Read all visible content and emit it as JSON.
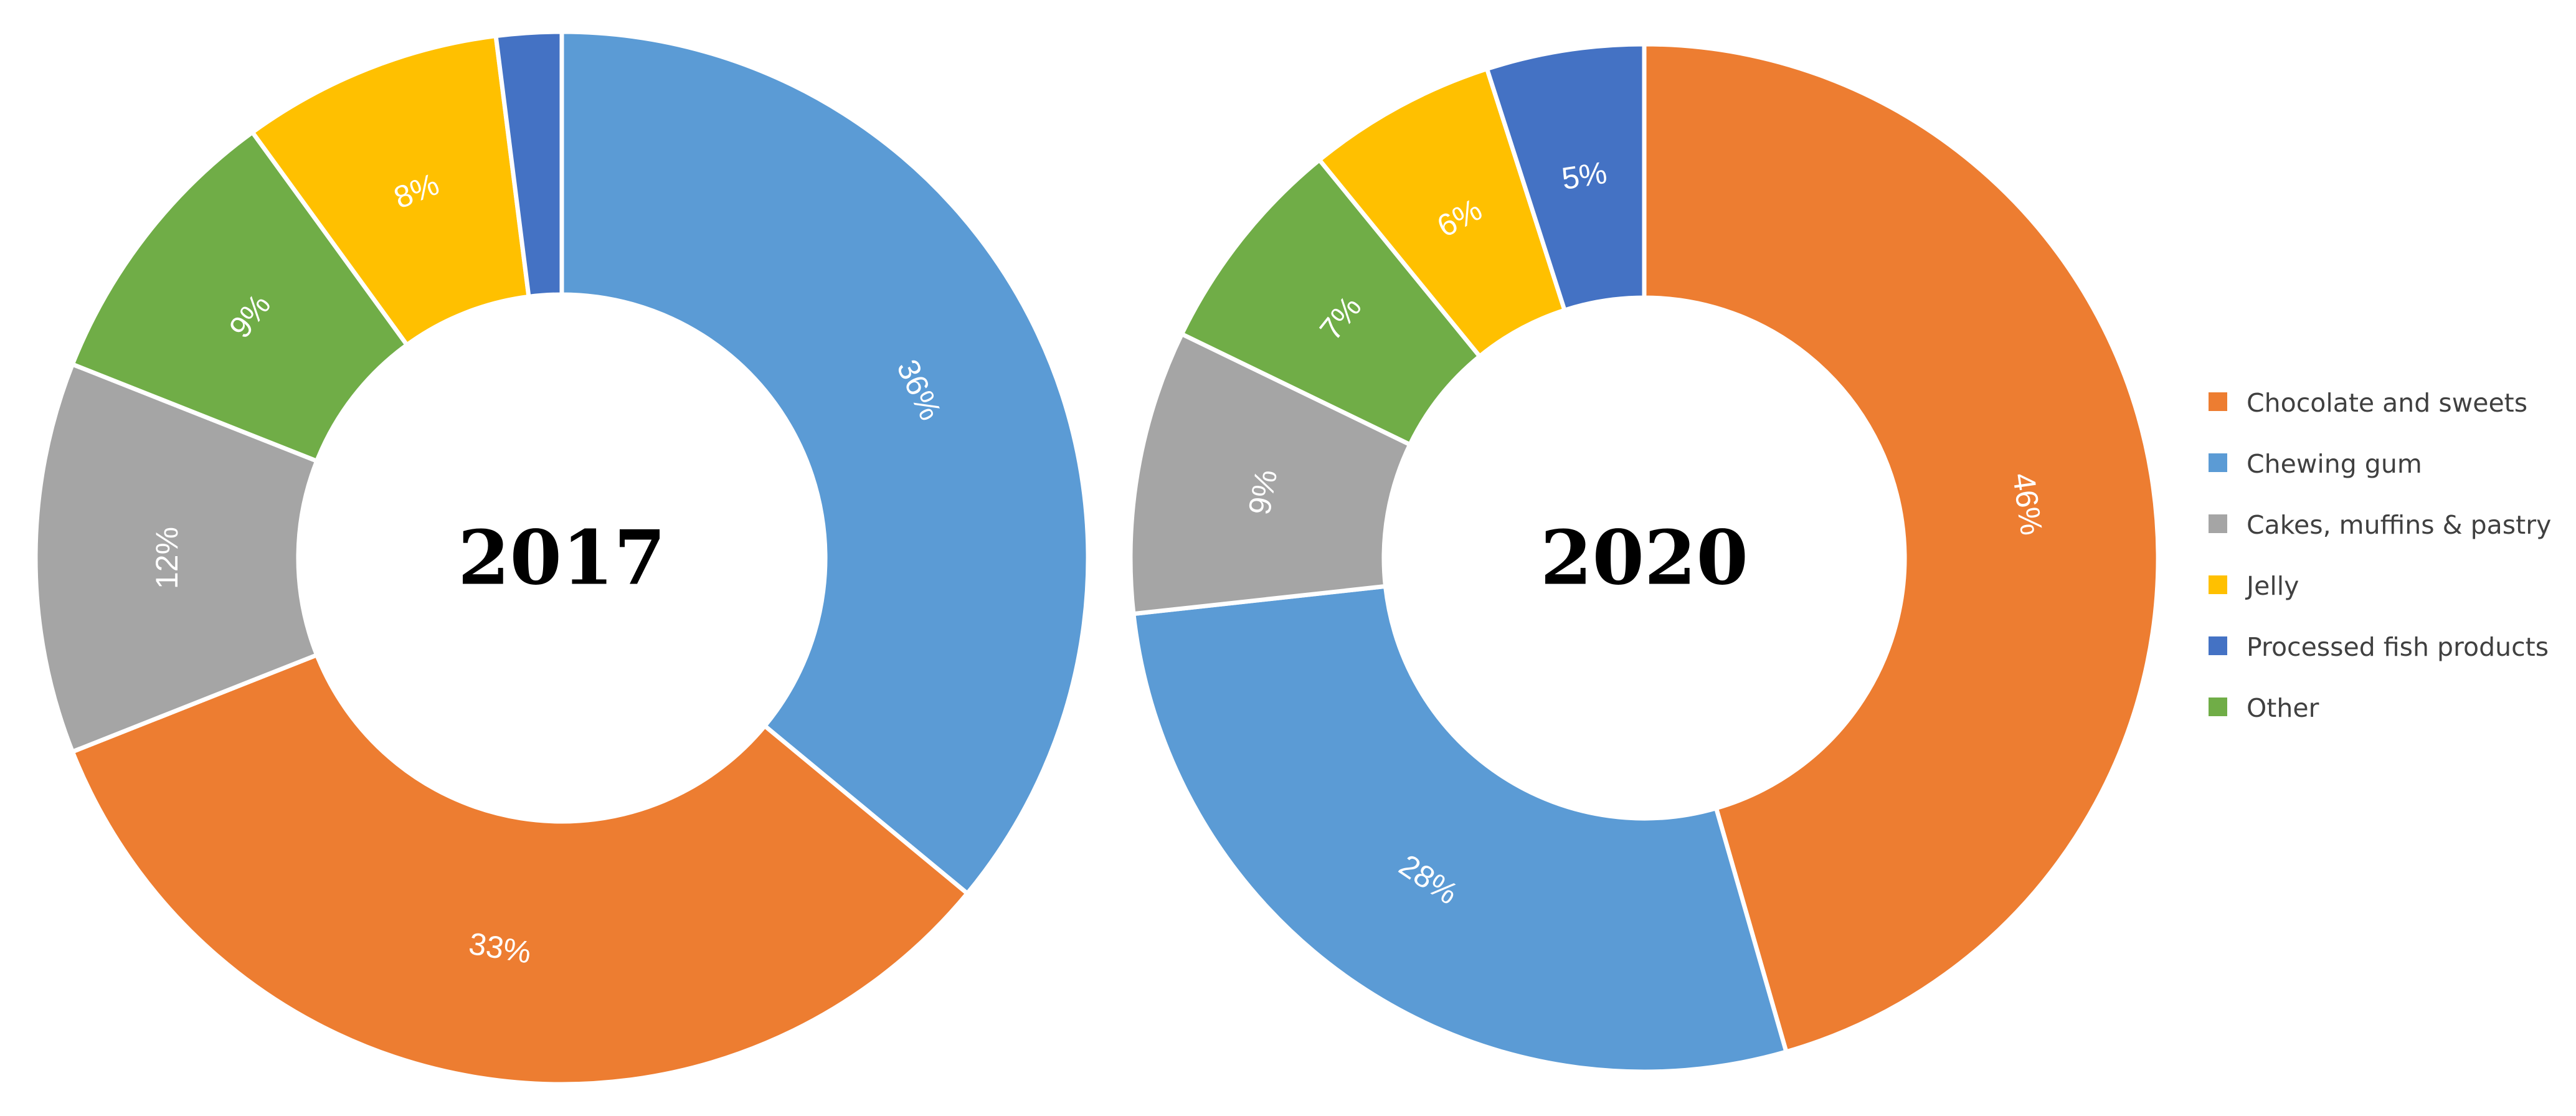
{
  "legend": {
    "position": "right",
    "items": [
      {
        "label": "Chocolate and sweets",
        "color": "#ED7D31"
      },
      {
        "label": "Chewing gum",
        "color": "#5B9BD5"
      },
      {
        "label": "Cakes, muffins & pastry",
        "color": "#A5A5A5"
      },
      {
        "label": "Jelly",
        "color": "#FFC000"
      },
      {
        "label": "Processed fish products",
        "color": "#4472C4"
      },
      {
        "label": "Other",
        "color": "#70AD47"
      }
    ]
  },
  "chart_data": [
    {
      "type": "donut",
      "title": "2017",
      "slices": [
        {
          "category": "Chewing gum",
          "value": 36,
          "label": "36%"
        },
        {
          "category": "Chocolate and sweets",
          "value": 33,
          "label": "33%"
        },
        {
          "category": "Cakes, muffins & pastry",
          "value": 12,
          "label": "12%"
        },
        {
          "category": "Other",
          "value": 9,
          "label": "9%"
        },
        {
          "category": "Jelly",
          "value": 8,
          "label": "8%"
        },
        {
          "category": "Processed fish products",
          "value": 2,
          "label": ""
        }
      ]
    },
    {
      "type": "donut",
      "title": "2020",
      "slices": [
        {
          "category": "Chocolate and sweets",
          "value": 46,
          "label": "46%"
        },
        {
          "category": "Chewing gum",
          "value": 28,
          "label": "28%"
        },
        {
          "category": "Cakes, muffins & pastry",
          "value": 9,
          "label": "9%"
        },
        {
          "category": "Other",
          "value": 7,
          "label": "7%"
        },
        {
          "category": "Jelly",
          "value": 6,
          "label": "6%"
        },
        {
          "category": "Processed fish products",
          "value": 5,
          "label": "5%"
        }
      ]
    }
  ]
}
